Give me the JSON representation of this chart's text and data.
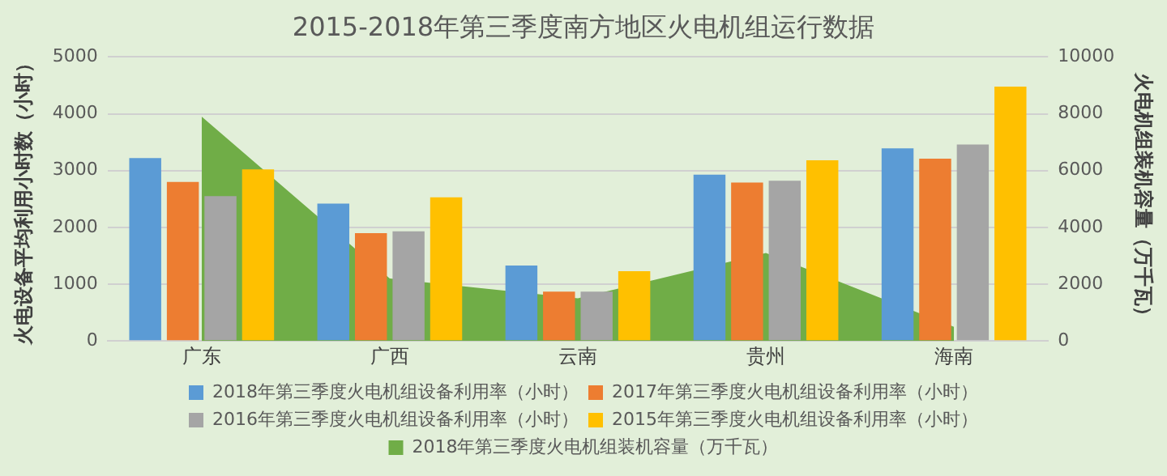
{
  "chart_data": {
    "type": "bar",
    "title": "2015-2018年第三季度南方地区火电机组运行数据",
    "ylabel": "火电设备平均利用小时数（小时）",
    "y2label": "火电机组装机容量（万千瓦）",
    "categories": [
      "广东",
      "广西",
      "云南",
      "贵州",
      "海南"
    ],
    "series": [
      {
        "name": "2018年第三季度火电机组装机容量（万千瓦）",
        "type": "area",
        "axis": "y2",
        "color": "#70ad47",
        "values": [
          7900,
          2200,
          1500,
          3100,
          500
        ]
      },
      {
        "name": "2018年第三季度火电机组设备利用率（小时）",
        "color": "#5b9bd5",
        "values": [
          3220,
          2420,
          1330,
          2930,
          3390
        ]
      },
      {
        "name": "2017年第三季度火电机组设备利用率（小时）",
        "color": "#ed7d31",
        "values": [
          2800,
          1900,
          870,
          2790,
          3210
        ]
      },
      {
        "name": "2016年第三季度火电机组设备利用率（小时）",
        "color": "#a5a5a5",
        "values": [
          2550,
          1930,
          870,
          2820,
          3460
        ]
      },
      {
        "name": "2015年第三季度火电机组设备利用率（小时）",
        "color": "#ffc000",
        "values": [
          3020,
          2530,
          1230,
          3180,
          4480
        ]
      }
    ],
    "ylim": [
      0,
      5000
    ],
    "yticks": [
      0,
      1000,
      2000,
      3000,
      4000,
      5000
    ],
    "y2lim": [
      0,
      10000
    ],
    "y2ticks": [
      0,
      2000,
      4000,
      6000,
      8000,
      10000
    ],
    "grid": "y",
    "legend": "bottom"
  }
}
